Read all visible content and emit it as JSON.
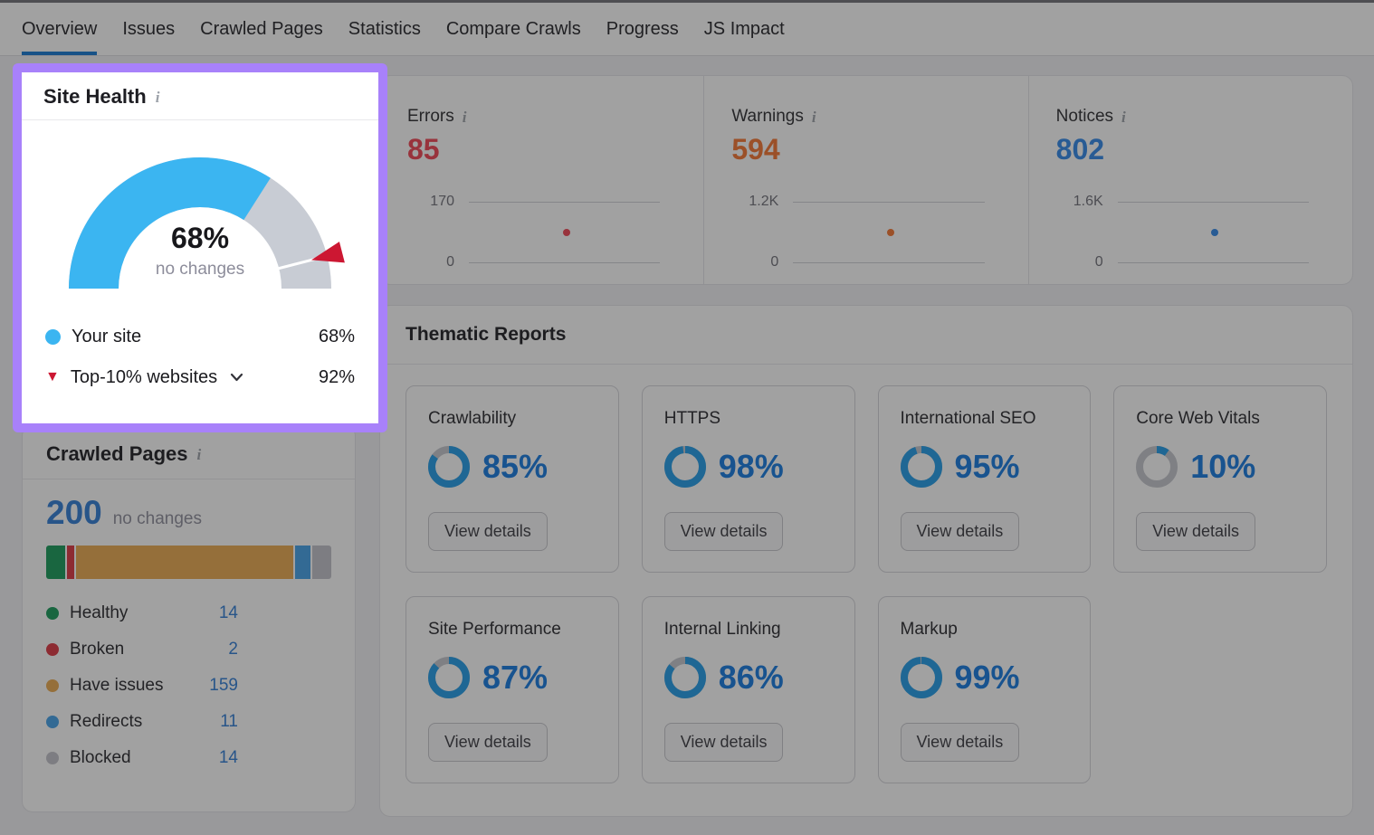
{
  "nav": {
    "tabs": [
      {
        "label": "Overview",
        "active": true
      },
      {
        "label": "Issues",
        "active": false
      },
      {
        "label": "Crawled Pages",
        "active": false
      },
      {
        "label": "Statistics",
        "active": false
      },
      {
        "label": "Compare Crawls",
        "active": false
      },
      {
        "label": "Progress",
        "active": false
      },
      {
        "label": "JS Impact",
        "active": false
      }
    ]
  },
  "site_health": {
    "title": "Site Health",
    "score": "68%",
    "note": "no changes",
    "gauge": {
      "value_pct": 68,
      "benchmark_pct": 92
    },
    "legend": [
      {
        "label": "Your site",
        "value": "68%"
      },
      {
        "label": "Top-10% websites",
        "value": "92%"
      }
    ]
  },
  "metrics": {
    "items": [
      {
        "label": "Errors",
        "value": "85",
        "axis_max": "170",
        "axis_min": "0",
        "color": "#ef4351"
      },
      {
        "label": "Warnings",
        "value": "594",
        "axis_max": "1.2K",
        "axis_min": "0",
        "color": "#f5742f"
      },
      {
        "label": "Notices",
        "value": "802",
        "axis_max": "1.6K",
        "axis_min": "0",
        "color": "#2f87e8"
      }
    ]
  },
  "thematic": {
    "title": "Thematic Reports",
    "button_label": "View details",
    "reports": [
      {
        "label": "Crawlability",
        "value": 85,
        "display": "85%"
      },
      {
        "label": "HTTPS",
        "value": 98,
        "display": "98%"
      },
      {
        "label": "International SEO",
        "value": 95,
        "display": "95%"
      },
      {
        "label": "Core Web Vitals",
        "value": 10,
        "display": "10%"
      },
      {
        "label": "Site Performance",
        "value": 87,
        "display": "87%"
      },
      {
        "label": "Internal Linking",
        "value": 86,
        "display": "86%"
      },
      {
        "label": "Markup",
        "value": 99,
        "display": "99%"
      }
    ]
  },
  "crawled": {
    "title": "Crawled Pages",
    "total": "200",
    "note": "no changes",
    "segments": [
      {
        "label": "Healthy",
        "value": 14,
        "display_value": "14",
        "color": "#169a58"
      },
      {
        "label": "Broken",
        "value": 2,
        "display_value": "2",
        "color": "#dc3440"
      },
      {
        "label": "Have issues",
        "value": 159,
        "display_value": "159",
        "color": "#eba94e"
      },
      {
        "label": "Redirects",
        "value": 11,
        "display_value": "11",
        "color": "#42a0e8"
      },
      {
        "label": "Blocked",
        "value": 14,
        "display_value": "14",
        "color": "#c2c2ca"
      }
    ]
  },
  "colors": {
    "gauge_blue": "#3bb5f1",
    "gauge_gray": "#c8ccd4",
    "gauge_marker_red": "#cc1732",
    "donut_blue": "#1f9ce8",
    "accent_purple": "#a881fa",
    "active_tab_blue": "#1377d2",
    "link_blue": "#2f7cd6"
  }
}
